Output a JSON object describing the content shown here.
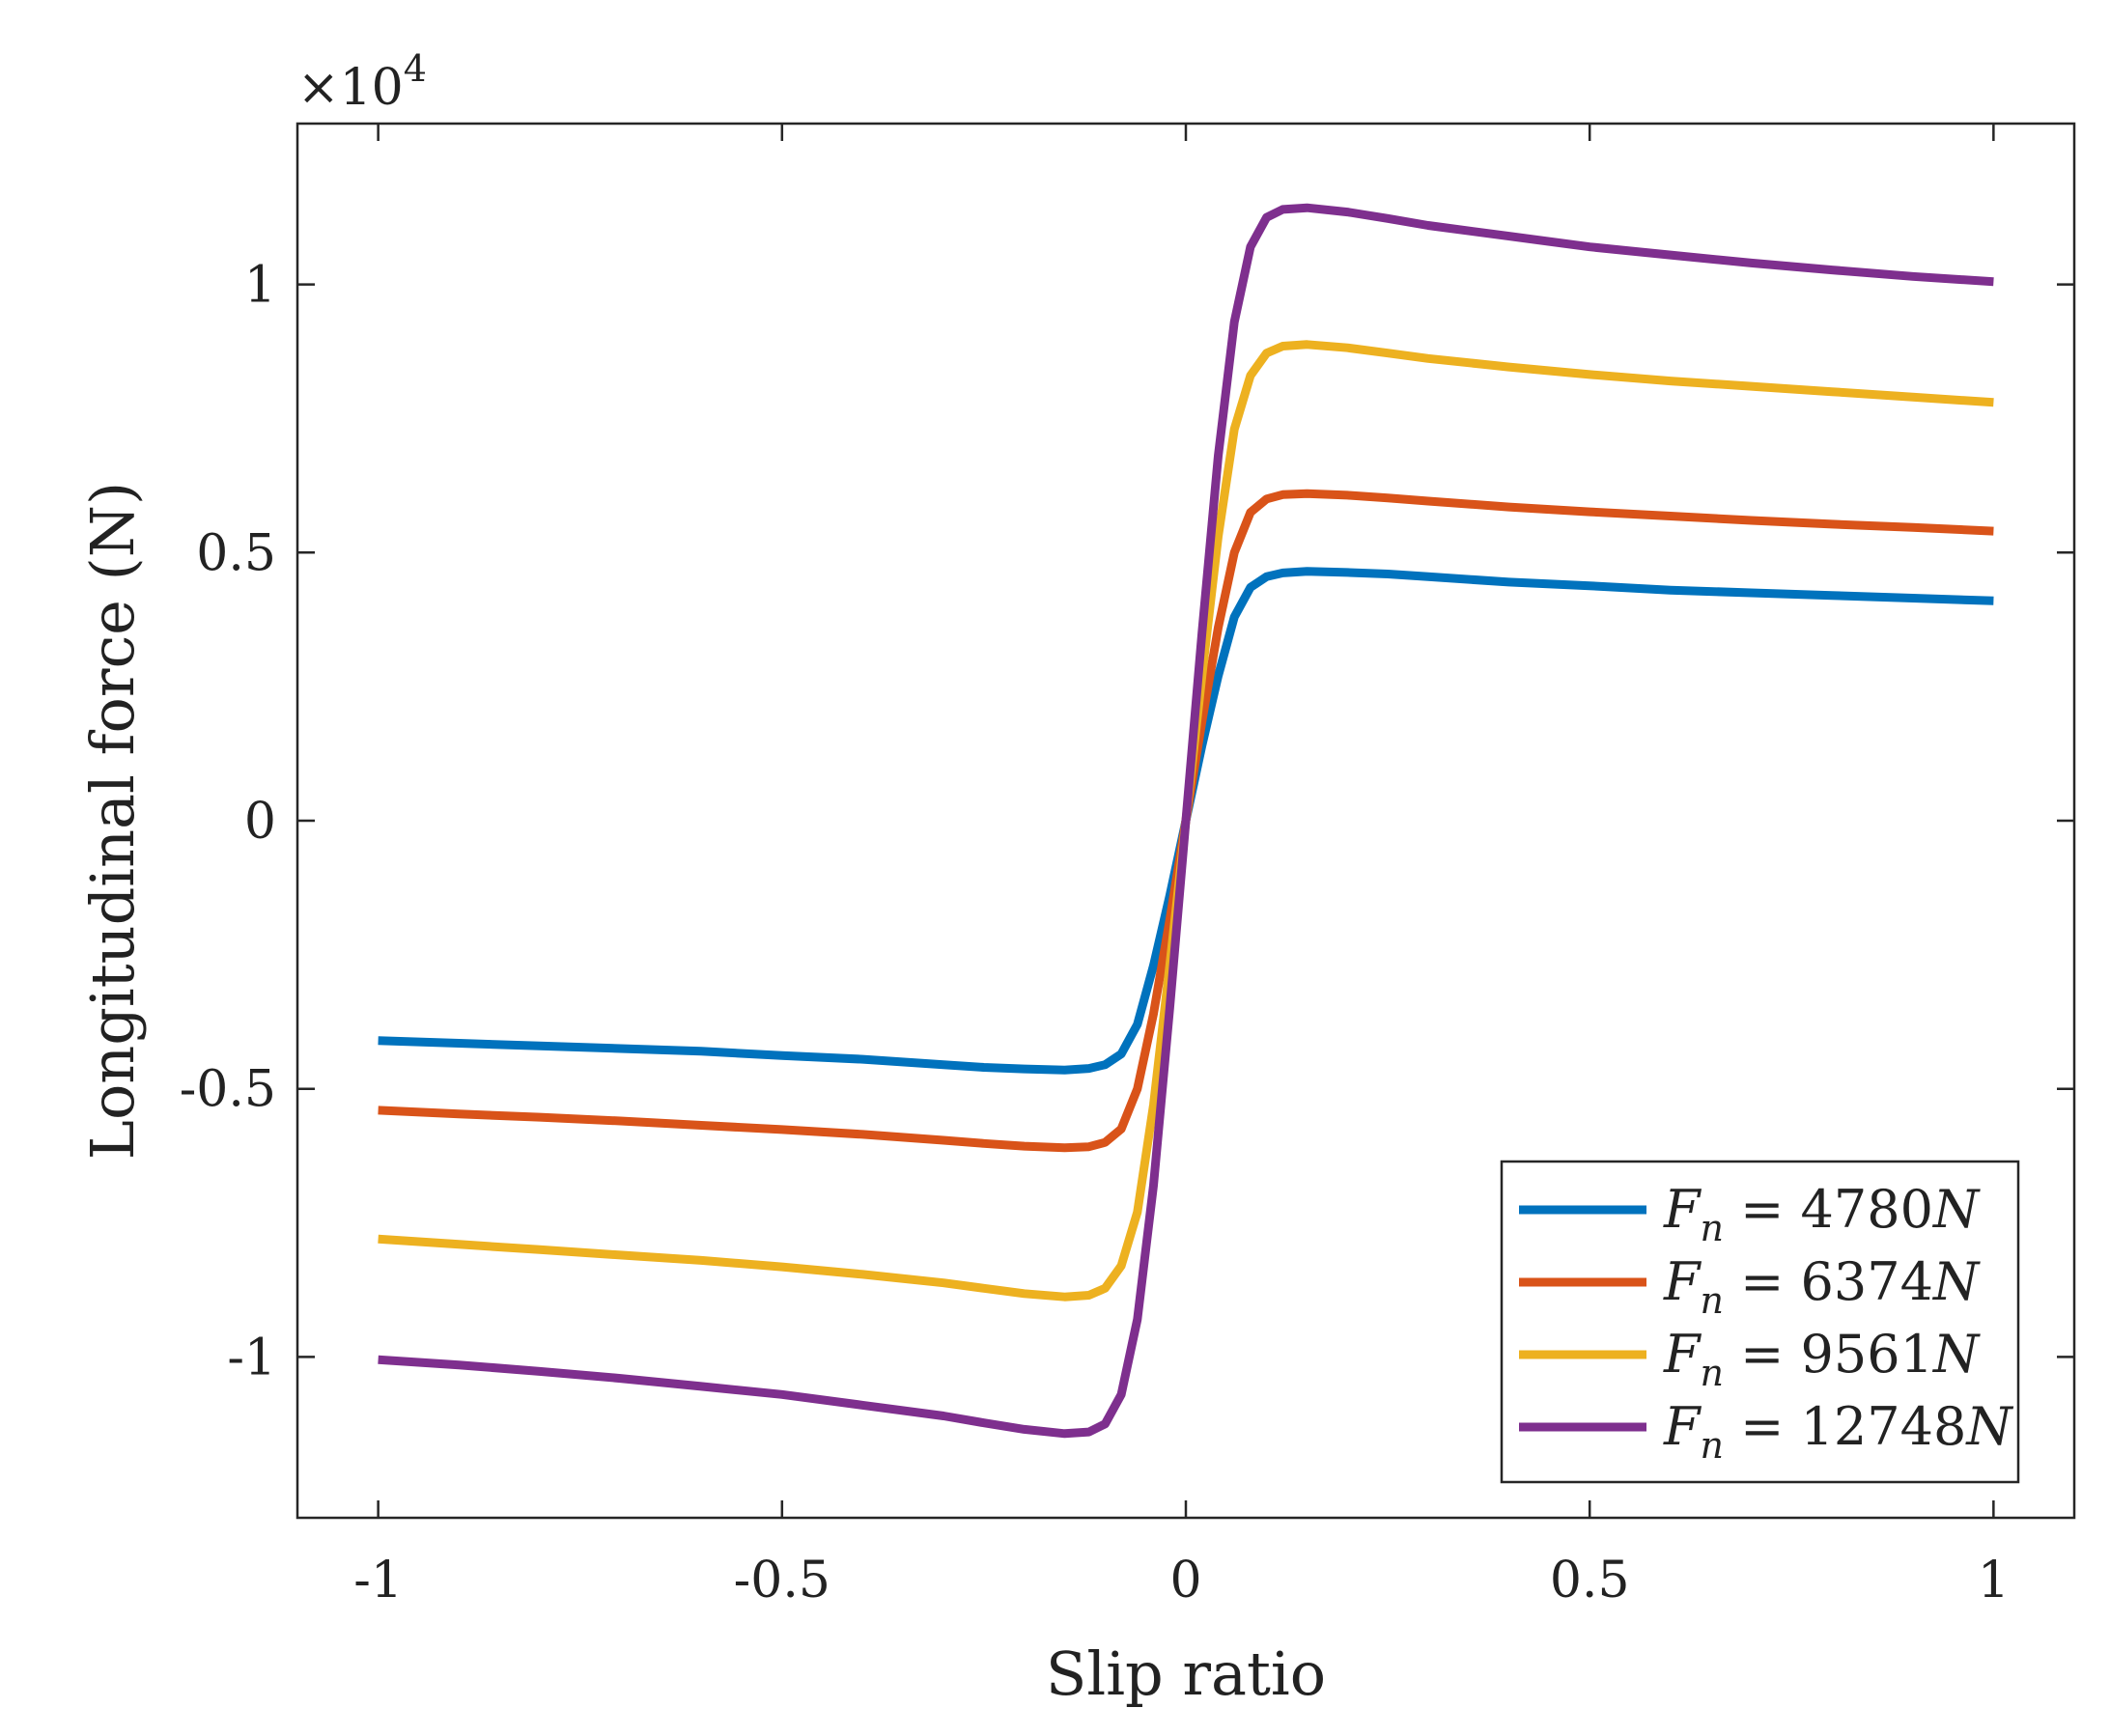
{
  "chart_data": {
    "type": "line",
    "xlabel": "Slip ratio",
    "ylabel": "Longitudinal force (N)",
    "y_exponent_base": "×10",
    "y_exponent_power": "4",
    "xlim": [
      -1.1,
      1.1
    ],
    "ylim": [
      -13000,
      13000
    ],
    "xticks": [
      -1,
      -0.5,
      0,
      0.5,
      1
    ],
    "xtick_labels": [
      "-1",
      "-0.5",
      "0",
      "0.5",
      "1"
    ],
    "yticks": [
      -10000,
      -5000,
      0,
      5000,
      10000
    ],
    "ytick_labels": [
      "-1",
      "-0.5",
      "0",
      "0.5",
      "1"
    ],
    "grid": false,
    "legend_position": "bottom-right",
    "x": [
      -1,
      -0.9,
      -0.8,
      -0.7,
      -0.6,
      -0.5,
      -0.4,
      -0.3,
      -0.25,
      -0.2,
      -0.15,
      -0.12,
      -0.1,
      -0.08,
      -0.06,
      -0.04,
      -0.02,
      0,
      0.02,
      0.04,
      0.06,
      0.08,
      0.1,
      0.12,
      0.15,
      0.2,
      0.25,
      0.3,
      0.4,
      0.5,
      0.6,
      0.7,
      0.8,
      0.9,
      1
    ],
    "series": [
      {
        "name_prefix": "F",
        "name_sub": "n",
        "name_eq": " = ",
        "name_value": "4780",
        "name_unit": "N",
        "color": "#0072BD",
        "values": [
          -4100,
          -4150,
          -4200,
          -4250,
          -4300,
          -4380,
          -4450,
          -4550,
          -4600,
          -4630,
          -4650,
          -4620,
          -4550,
          -4350,
          -3800,
          -2700,
          -1400,
          0,
          1400,
          2700,
          3800,
          4350,
          4550,
          4620,
          4650,
          4630,
          4600,
          4550,
          4450,
          4380,
          4300,
          4250,
          4200,
          4150,
          4100
        ]
      },
      {
        "name_prefix": "F",
        "name_sub": "n",
        "name_eq": " = ",
        "name_value": "6374",
        "name_unit": "N",
        "color": "#D95319",
        "values": [
          -5400,
          -5470,
          -5530,
          -5600,
          -5680,
          -5760,
          -5850,
          -5960,
          -6020,
          -6070,
          -6100,
          -6080,
          -6000,
          -5750,
          -5000,
          -3600,
          -1850,
          0,
          1850,
          3600,
          5000,
          5750,
          6000,
          6080,
          6100,
          6070,
          6020,
          5960,
          5850,
          5760,
          5680,
          5600,
          5530,
          5470,
          5400
        ]
      },
      {
        "name_prefix": "F",
        "name_sub": "n",
        "name_eq": " = ",
        "name_value": "9561",
        "name_unit": "N",
        "color": "#EDB120",
        "values": [
          -7800,
          -7900,
          -8000,
          -8100,
          -8200,
          -8320,
          -8460,
          -8620,
          -8720,
          -8820,
          -8880,
          -8850,
          -8720,
          -8300,
          -7300,
          -5300,
          -2700,
          0,
          2700,
          5300,
          7300,
          8300,
          8720,
          8850,
          8880,
          8820,
          8720,
          8620,
          8460,
          8320,
          8200,
          8100,
          8000,
          7900,
          7800
        ]
      },
      {
        "name_prefix": "F",
        "name_sub": "n",
        "name_eq": " = ",
        "name_value": "12748",
        "name_unit": "N",
        "color": "#7E2F8E",
        "values": [
          -10050,
          -10150,
          -10270,
          -10400,
          -10550,
          -10700,
          -10900,
          -11100,
          -11230,
          -11350,
          -11430,
          -11400,
          -11250,
          -10700,
          -9300,
          -6800,
          -3500,
          0,
          3500,
          6800,
          9300,
          10700,
          11250,
          11400,
          11430,
          11350,
          11230,
          11100,
          10900,
          10700,
          10550,
          10400,
          10270,
          10150,
          10050
        ]
      }
    ]
  }
}
